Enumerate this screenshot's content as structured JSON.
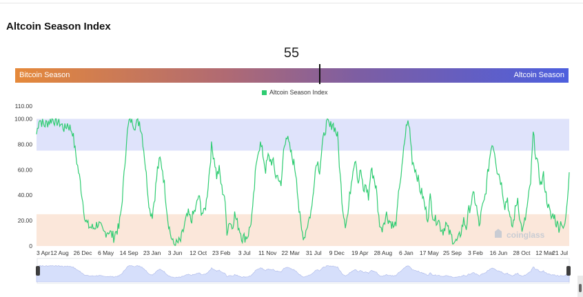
{
  "page": {
    "title": "Altcoin Season Index",
    "watermark": "coinglass"
  },
  "indicator": {
    "current_value": "55",
    "value_numeric": 55,
    "left_label": "Bitcoin Season",
    "right_label": "Altcoin Season"
  },
  "legend": {
    "label": "Altcoin Season Index",
    "color": "#2ecc71"
  },
  "colors": {
    "line": "#2ecc71",
    "altcoin_zone": "#dfe3fb",
    "bitcoin_zone": "#fbe7da",
    "navigator_fill": "#d6dffb",
    "navigator_line": "#aab6e8"
  },
  "chart_data": {
    "type": "line",
    "title": "Altcoin Season Index",
    "series": [
      {
        "name": "Altcoin Season Index"
      }
    ],
    "x_tick_labels": [
      "3 Apr",
      "12 Aug",
      "26 Dec",
      "6 May",
      "14 Sep",
      "23 Jan",
      "3 Jun",
      "12 Oct",
      "23 Feb",
      "3 Jul",
      "11 Nov",
      "22 Mar",
      "31 Jul",
      "9 Dec",
      "19 Apr",
      "28 Aug",
      "6 Jan",
      "17 May",
      "25 Sep",
      "3 Feb",
      "16 Jun",
      "28 Oct",
      "12 Mar",
      "21 Jul"
    ],
    "y_tick_labels": [
      "0",
      "20.00",
      "40.00",
      "60.00",
      "80.00",
      "100.00",
      "110.00"
    ],
    "y_ticks": [
      0,
      20,
      40,
      60,
      80,
      100,
      110
    ],
    "ylim": [
      0,
      110
    ],
    "zones": [
      {
        "name": "Altcoin Season",
        "from": 75,
        "to": 100
      },
      {
        "name": "Bitcoin Season",
        "from": 0,
        "to": 25
      }
    ],
    "keypoints": [
      [
        0,
        88
      ],
      [
        1,
        100
      ],
      [
        3,
        95
      ],
      [
        6,
        100
      ],
      [
        9,
        97
      ],
      [
        11,
        92
      ],
      [
        12,
        96
      ],
      [
        14,
        90
      ],
      [
        15,
        75
      ],
      [
        17,
        50
      ],
      [
        19,
        20
      ],
      [
        20,
        16
      ],
      [
        22,
        14
      ],
      [
        24,
        18
      ],
      [
        26,
        10
      ],
      [
        28,
        12
      ],
      [
        30,
        7
      ],
      [
        31,
        12
      ],
      [
        32,
        14
      ],
      [
        33,
        30
      ],
      [
        34,
        55
      ],
      [
        35,
        85
      ],
      [
        36,
        98
      ],
      [
        37,
        100
      ],
      [
        38,
        95
      ],
      [
        40,
        98
      ],
      [
        41,
        88
      ],
      [
        42,
        70
      ],
      [
        43,
        48
      ],
      [
        44,
        28
      ],
      [
        45,
        25
      ],
      [
        46,
        40
      ],
      [
        47,
        60
      ],
      [
        48,
        68
      ],
      [
        49,
        60
      ],
      [
        50,
        42
      ],
      [
        51,
        22
      ],
      [
        52,
        10
      ],
      [
        53,
        2
      ],
      [
        54,
        1
      ],
      [
        56,
        4
      ],
      [
        57,
        12
      ],
      [
        58,
        20
      ],
      [
        59,
        25
      ],
      [
        60,
        20
      ],
      [
        62,
        30
      ],
      [
        63,
        40
      ],
      [
        64,
        28
      ],
      [
        65,
        25
      ],
      [
        66,
        35
      ],
      [
        67,
        55
      ],
      [
        68,
        78
      ],
      [
        69,
        70
      ],
      [
        70,
        55
      ],
      [
        71,
        60
      ],
      [
        72,
        45
      ],
      [
        73,
        40
      ],
      [
        74,
        12
      ],
      [
        75,
        20
      ],
      [
        76,
        15
      ],
      [
        77,
        25
      ],
      [
        78,
        18
      ],
      [
        79,
        13
      ],
      [
        80,
        6
      ],
      [
        82,
        8
      ],
      [
        83,
        15
      ],
      [
        84,
        28
      ],
      [
        85,
        55
      ],
      [
        86,
        75
      ],
      [
        87,
        80
      ],
      [
        88,
        72
      ],
      [
        89,
        60
      ],
      [
        90,
        70
      ],
      [
        92,
        65
      ],
      [
        93,
        55
      ],
      [
        94,
        55
      ],
      [
        95,
        45
      ],
      [
        96,
        75
      ],
      [
        97,
        88
      ],
      [
        98,
        80
      ],
      [
        99,
        72
      ],
      [
        100,
        65
      ],
      [
        101,
        55
      ],
      [
        102,
        28
      ],
      [
        103,
        12
      ],
      [
        104,
        7
      ],
      [
        105,
        15
      ],
      [
        106,
        22
      ],
      [
        107,
        30
      ],
      [
        108,
        55
      ],
      [
        109,
        68
      ],
      [
        110,
        60
      ],
      [
        111,
        78
      ],
      [
        112,
        90
      ],
      [
        113,
        98
      ],
      [
        114,
        93
      ],
      [
        115,
        97
      ],
      [
        116,
        92
      ],
      [
        117,
        86
      ],
      [
        118,
        55
      ],
      [
        119,
        30
      ],
      [
        120,
        18
      ],
      [
        121,
        25
      ],
      [
        122,
        45
      ],
      [
        123,
        62
      ],
      [
        124,
        70
      ],
      [
        125,
        50
      ],
      [
        126,
        60
      ],
      [
        127,
        42
      ],
      [
        128,
        48
      ],
      [
        129,
        38
      ],
      [
        130,
        60
      ],
      [
        131,
        55
      ],
      [
        132,
        45
      ],
      [
        133,
        22
      ],
      [
        134,
        12
      ],
      [
        135,
        20
      ],
      [
        136,
        25
      ],
      [
        137,
        20
      ],
      [
        138,
        18
      ],
      [
        139,
        14
      ],
      [
        140,
        22
      ],
      [
        141,
        48
      ],
      [
        142,
        60
      ],
      [
        143,
        82
      ],
      [
        144,
        98
      ],
      [
        145,
        92
      ],
      [
        146,
        68
      ],
      [
        147,
        62
      ],
      [
        148,
        55
      ],
      [
        149,
        45
      ],
      [
        150,
        40
      ],
      [
        151,
        30
      ],
      [
        152,
        22
      ],
      [
        153,
        38
      ],
      [
        154,
        25
      ],
      [
        155,
        20
      ],
      [
        156,
        22
      ],
      [
        157,
        15
      ],
      [
        158,
        12
      ],
      [
        159,
        18
      ],
      [
        160,
        12
      ],
      [
        161,
        8
      ],
      [
        162,
        5
      ],
      [
        163,
        3
      ],
      [
        164,
        5
      ],
      [
        165,
        12
      ],
      [
        166,
        20
      ],
      [
        167,
        15
      ],
      [
        168,
        28
      ],
      [
        169,
        35
      ],
      [
        170,
        40
      ],
      [
        171,
        30
      ],
      [
        172,
        15
      ],
      [
        173,
        28
      ],
      [
        174,
        35
      ],
      [
        175,
        50
      ],
      [
        176,
        68
      ],
      [
        177,
        82
      ],
      [
        178,
        75
      ],
      [
        179,
        60
      ],
      [
        180,
        55
      ],
      [
        181,
        45
      ],
      [
        182,
        32
      ],
      [
        183,
        38
      ],
      [
        184,
        20
      ],
      [
        185,
        15
      ],
      [
        186,
        28
      ],
      [
        187,
        38
      ],
      [
        188,
        18
      ],
      [
        189,
        12
      ],
      [
        190,
        22
      ],
      [
        191,
        35
      ],
      [
        192,
        50
      ],
      [
        193,
        88
      ],
      [
        194,
        72
      ],
      [
        195,
        60
      ],
      [
        196,
        48
      ],
      [
        197,
        55
      ],
      [
        198,
        40
      ],
      [
        199,
        30
      ],
      [
        200,
        22
      ],
      [
        201,
        25
      ],
      [
        202,
        18
      ],
      [
        203,
        15
      ],
      [
        204,
        20
      ],
      [
        205,
        12
      ],
      [
        206,
        28
      ],
      [
        207,
        58
      ]
    ]
  },
  "navigator": {
    "left_handle": "range-start",
    "right_handle": "range-end"
  }
}
